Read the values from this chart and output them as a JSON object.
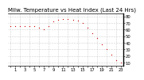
{
  "title": "Milw. Temperature vs Heat Index (Last 24 Hrs)",
  "line_color": "#cc0000",
  "bg_color": "#ffffff",
  "grid_color": "#aaaaaa",
  "y_ticks": [
    10,
    20,
    30,
    40,
    50,
    60,
    70,
    80
  ],
  "ylim": [
    5,
    85
  ],
  "xlim": [
    -0.5,
    23.5
  ],
  "time_hours": [
    0,
    1,
    2,
    3,
    4,
    5,
    6,
    7,
    8,
    9,
    10,
    11,
    12,
    13,
    14,
    15,
    16,
    17,
    18,
    19,
    20,
    21,
    22,
    23
  ],
  "temp_values": [
    65,
    65,
    65,
    65,
    65,
    65,
    63,
    60,
    65,
    72,
    75,
    76,
    76,
    75,
    74,
    70,
    63,
    55,
    47,
    38,
    30,
    22,
    14,
    10
  ],
  "title_fontsize": 5.0,
  "tick_fontsize": 3.8
}
